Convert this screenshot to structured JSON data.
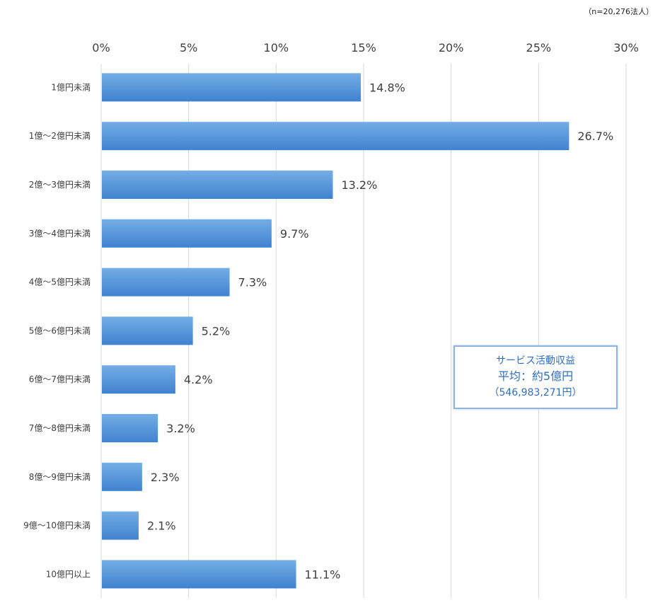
{
  "note": "（n=20,276法人）",
  "average_box": {
    "line1": "サービス活動収益",
    "line2": "平均：約5億円",
    "line3": "（546,983,271円）"
  },
  "colors": {
    "bar_top": "#74aee6",
    "bar_bottom": "#3f82cf",
    "grid": "#d9d9d9",
    "axis_text": "#404040",
    "value_text": "#404040",
    "box_border": "#8fb4de",
    "box_text": "#2e6fc4"
  },
  "chart_data": {
    "type": "bar",
    "orientation": "horizontal",
    "categories": [
      "1億円未満",
      "1億～2億円未満",
      "2億～3億円未満",
      "3億～4億円未満",
      "4億～5億円未満",
      "5億～6億円未満",
      "6億～7億円未満",
      "7億～8億円未満",
      "8億～9億円未満",
      "9億～10億円未満",
      "10億円以上"
    ],
    "values": [
      14.8,
      26.7,
      13.2,
      9.7,
      7.3,
      5.2,
      4.2,
      3.2,
      2.3,
      2.1,
      11.1
    ],
    "value_labels": [
      "14.8%",
      "26.7%",
      "13.2%",
      "9.7%",
      "7.3%",
      "5.2%",
      "4.2%",
      "3.2%",
      "2.3%",
      "2.1%",
      "11.1%"
    ],
    "xlim": [
      0,
      30
    ],
    "xticks": [
      0,
      5,
      10,
      15,
      20,
      25,
      30
    ],
    "xtick_labels": [
      "0%",
      "5%",
      "10%",
      "15%",
      "20%",
      "25%",
      "30%"
    ],
    "xaxis_position": "top",
    "grid": true,
    "legend": false,
    "title": "",
    "xlabel": "",
    "ylabel": ""
  }
}
